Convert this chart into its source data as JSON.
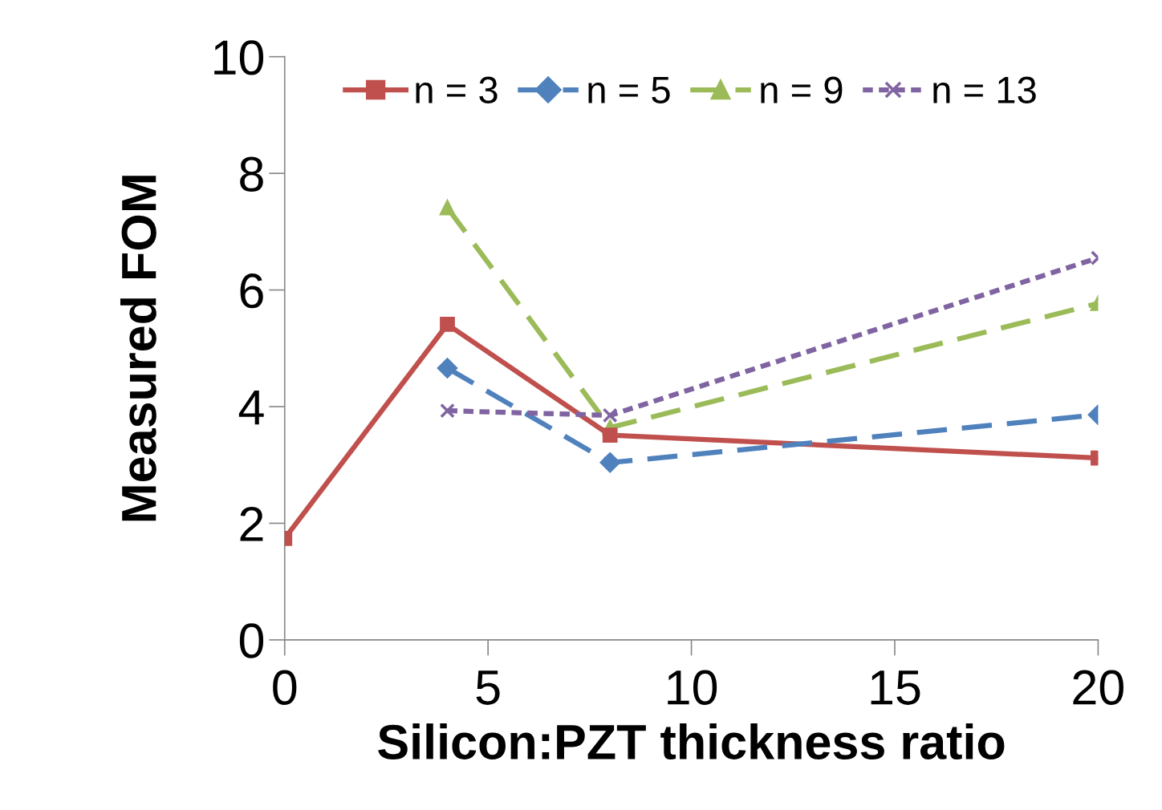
{
  "chart_data": {
    "type": "line",
    "xlabel": "Silicon:PZT thickness ratio",
    "ylabel": "Measured FOM",
    "series": [
      {
        "name": "n = 3",
        "color": "#c0504d",
        "marker": "square",
        "line_style": "solid",
        "x": [
          0,
          4,
          8,
          20
        ],
        "values": [
          1.74,
          5.41,
          3.51,
          3.12
        ]
      },
      {
        "name": "n = 5",
        "color": "#4f81bd",
        "marker": "diamond",
        "line_style": "dashed",
        "x": [
          4,
          8,
          20
        ],
        "values": [
          4.66,
          3.04,
          3.86
        ]
      },
      {
        "name": "n = 9",
        "color": "#9bbb59",
        "marker": "triangle",
        "line_style": "dashed",
        "x": [
          4,
          8,
          20
        ],
        "values": [
          7.41,
          3.64,
          5.77
        ]
      },
      {
        "name": "n = 13",
        "color": "#8064a2",
        "marker": "cross",
        "line_style": "dotted",
        "x": [
          4,
          8,
          20
        ],
        "values": [
          3.93,
          3.85,
          6.55
        ]
      }
    ],
    "xlim": [
      0,
      20
    ],
    "xticks": [
      0,
      5,
      10,
      15,
      20
    ],
    "ylim": [
      0,
      10
    ],
    "yticks": [
      0,
      2,
      4,
      6,
      8,
      10
    ],
    "grid": false,
    "legend": "top"
  }
}
